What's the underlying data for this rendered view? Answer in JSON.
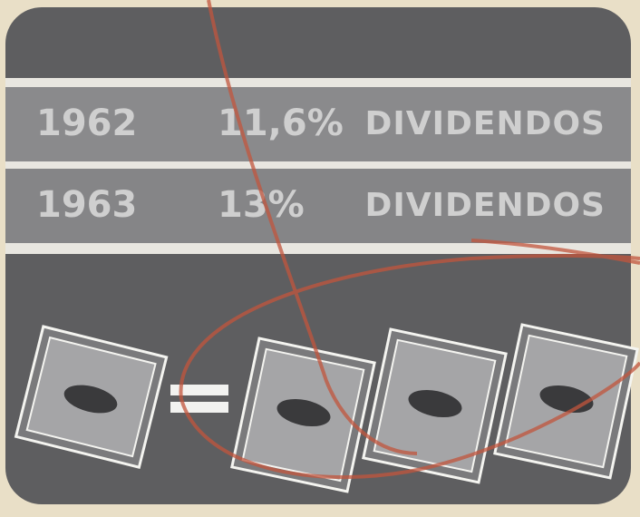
{
  "rows": [
    {
      "year": "1962",
      "rate": "11,6%",
      "label": "DIVIDENDOS"
    },
    {
      "year": "1963",
      "rate": "13%",
      "label": "DIVIDENDOS"
    }
  ]
}
